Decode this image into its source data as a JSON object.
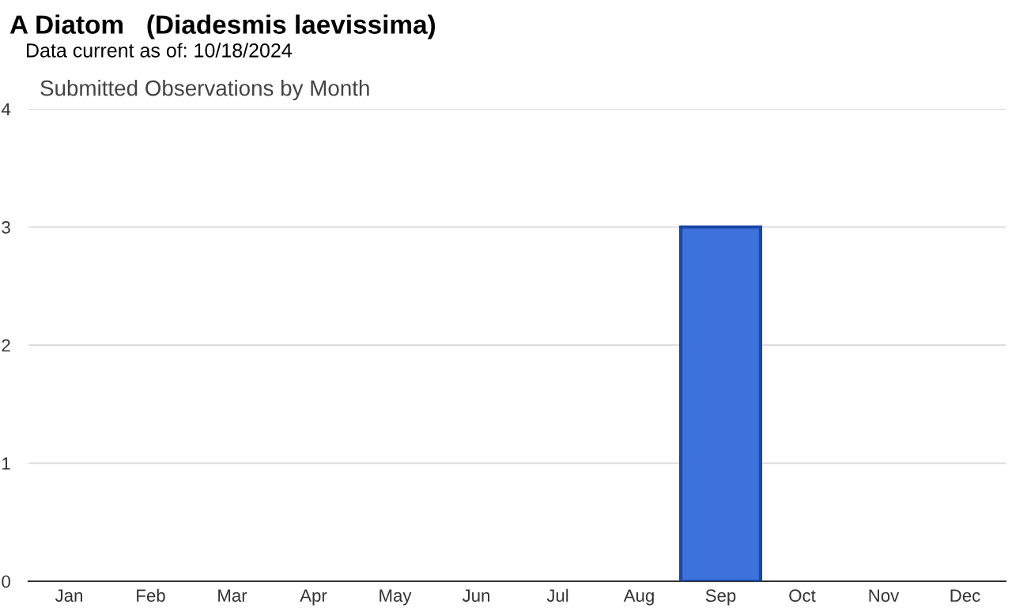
{
  "chart_data": {
    "type": "bar",
    "title": "A Diatom   (Diadesmis laevissima)",
    "subtitle": "Data current as of: 10/18/2024",
    "annotations": [
      "Submitted Observations by Month"
    ],
    "categories": [
      "Jan",
      "Feb",
      "Mar",
      "Apr",
      "May",
      "Jun",
      "Jul",
      "Aug",
      "Sep",
      "Oct",
      "Nov",
      "Dec"
    ],
    "values": [
      0,
      0,
      0,
      0,
      0,
      0,
      0,
      0,
      3,
      0,
      0,
      0
    ],
    "color": "#3d72dc",
    "ylim": [
      0,
      4
    ],
    "yticks": [
      0,
      1,
      2,
      3,
      4
    ],
    "grid": "y",
    "legend": false
  }
}
